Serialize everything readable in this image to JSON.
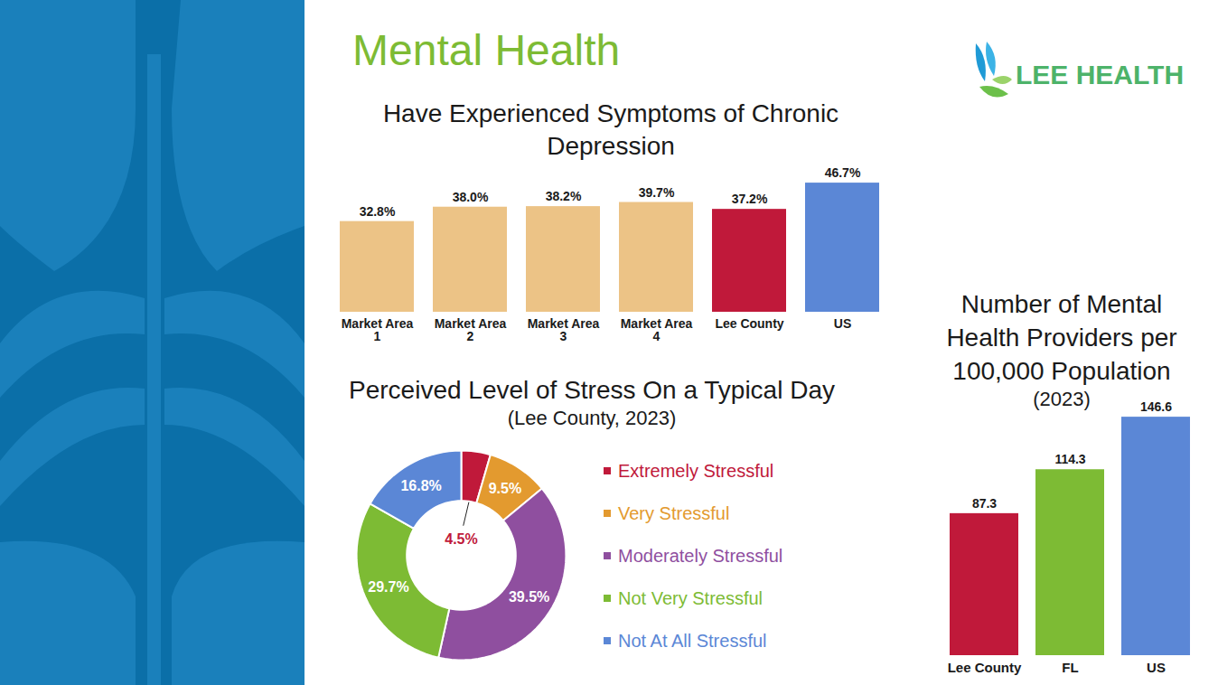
{
  "title": "Mental Health",
  "logo": "LEE HEALTH",
  "chart_data": [
    {
      "type": "bar",
      "title": "Have Experienced Symptoms of Chronic Depression",
      "categories": [
        "Market Area 1",
        "Market Area 2",
        "Market Area 3",
        "Market Area 4",
        "Lee County",
        "US"
      ],
      "values": [
        32.8,
        38.0,
        38.2,
        39.7,
        37.2,
        46.7
      ],
      "value_labels": [
        "32.8%",
        "38.0%",
        "38.2%",
        "39.7%",
        "37.2%",
        "46.7%"
      ],
      "colors": [
        "#ecc386",
        "#ecc386",
        "#ecc386",
        "#ecc386",
        "#c0193a",
        "#5b87d6"
      ],
      "ylim": [
        0,
        50
      ],
      "data_labels": true,
      "tick_labels": "x"
    },
    {
      "type": "donut",
      "title": "Perceived Level of Stress On a Typical Day",
      "subtitle": "(Lee County, 2023)",
      "categories": [
        "Extremely Stressful",
        "Very Stressful",
        "Moderately Stressful",
        "Not Very Stressful",
        "Not At All Stressful"
      ],
      "values": [
        4.5,
        9.5,
        39.5,
        29.7,
        16.8
      ],
      "value_labels": [
        "4.5%",
        "9.5%",
        "39.5%",
        "29.7%",
        "16.8%"
      ],
      "colors": [
        "#c0193a",
        "#e39a2f",
        "#8f4f9f",
        "#7dbb34",
        "#5b87d6"
      ],
      "legend": "right",
      "data_labels": true
    },
    {
      "type": "bar",
      "title": "Number of Mental Health Providers per 100,000 Population",
      "subtitle": "(2023)",
      "categories": [
        "Lee County",
        "FL",
        "US"
      ],
      "values": [
        87.3,
        114.3,
        146.6
      ],
      "colors": [
        "#c0193a",
        "#7dbb34",
        "#5b87d6"
      ],
      "ylim": [
        0,
        150
      ],
      "data_labels": true,
      "tick_labels": "x"
    }
  ]
}
